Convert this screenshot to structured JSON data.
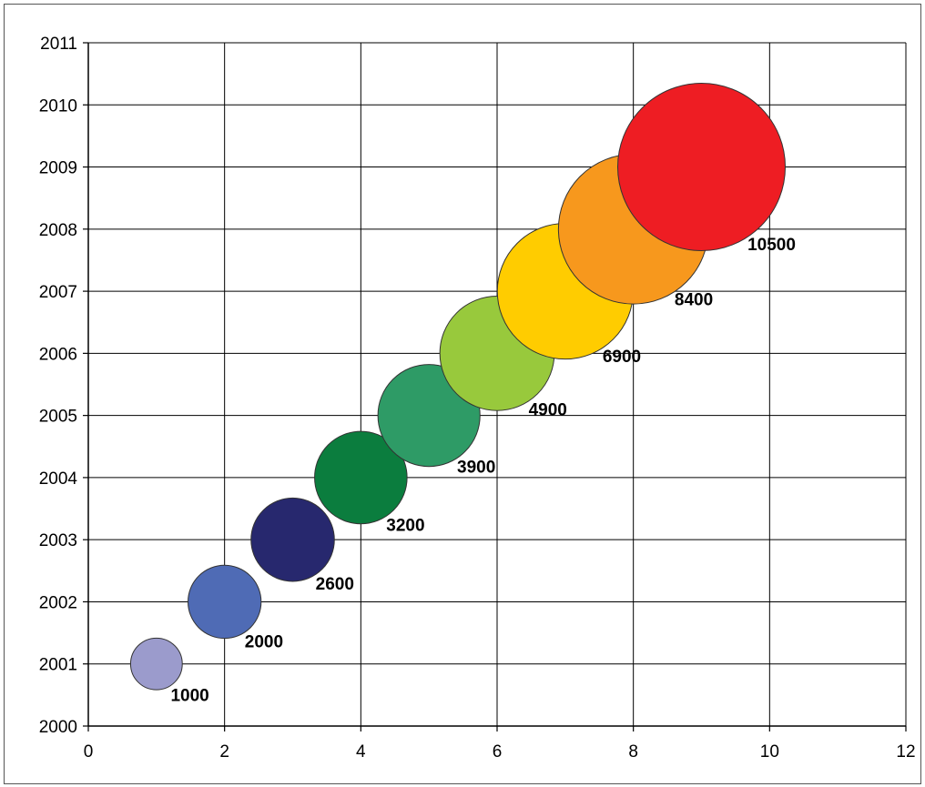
{
  "chart_data": {
    "type": "bubble",
    "title": "",
    "xlabel": "",
    "ylabel": "",
    "xlim": [
      0,
      12
    ],
    "ylim": [
      2000,
      2011
    ],
    "x_ticks": [
      0,
      2,
      4,
      6,
      8,
      10,
      12
    ],
    "y_ticks": [
      2000,
      2001,
      2002,
      2003,
      2004,
      2005,
      2006,
      2007,
      2008,
      2009,
      2010,
      2011
    ],
    "grid": true,
    "legend": "none",
    "points": [
      {
        "x": 1,
        "y": 2001,
        "size": 1000,
        "label": "1000",
        "color": "#9b9bcc"
      },
      {
        "x": 2,
        "y": 2002,
        "size": 2000,
        "label": "2000",
        "color": "#4f6bb5"
      },
      {
        "x": 3,
        "y": 2003,
        "size": 2600,
        "label": "2600",
        "color": "#27286e"
      },
      {
        "x": 4,
        "y": 2004,
        "size": 3200,
        "label": "3200",
        "color": "#0b7d3e"
      },
      {
        "x": 5,
        "y": 2005,
        "size": 3900,
        "label": "3900",
        "color": "#2e9b66"
      },
      {
        "x": 6,
        "y": 2006,
        "size": 4900,
        "label": "4900",
        "color": "#98c93c"
      },
      {
        "x": 7,
        "y": 2007,
        "size": 6900,
        "label": "6900",
        "color": "#ffcc00"
      },
      {
        "x": 8,
        "y": 2008,
        "size": 8400,
        "label": "8400",
        "color": "#f7981d"
      },
      {
        "x": 9,
        "y": 2009,
        "size": 10500,
        "label": "10500",
        "color": "#ee1d23"
      }
    ]
  }
}
